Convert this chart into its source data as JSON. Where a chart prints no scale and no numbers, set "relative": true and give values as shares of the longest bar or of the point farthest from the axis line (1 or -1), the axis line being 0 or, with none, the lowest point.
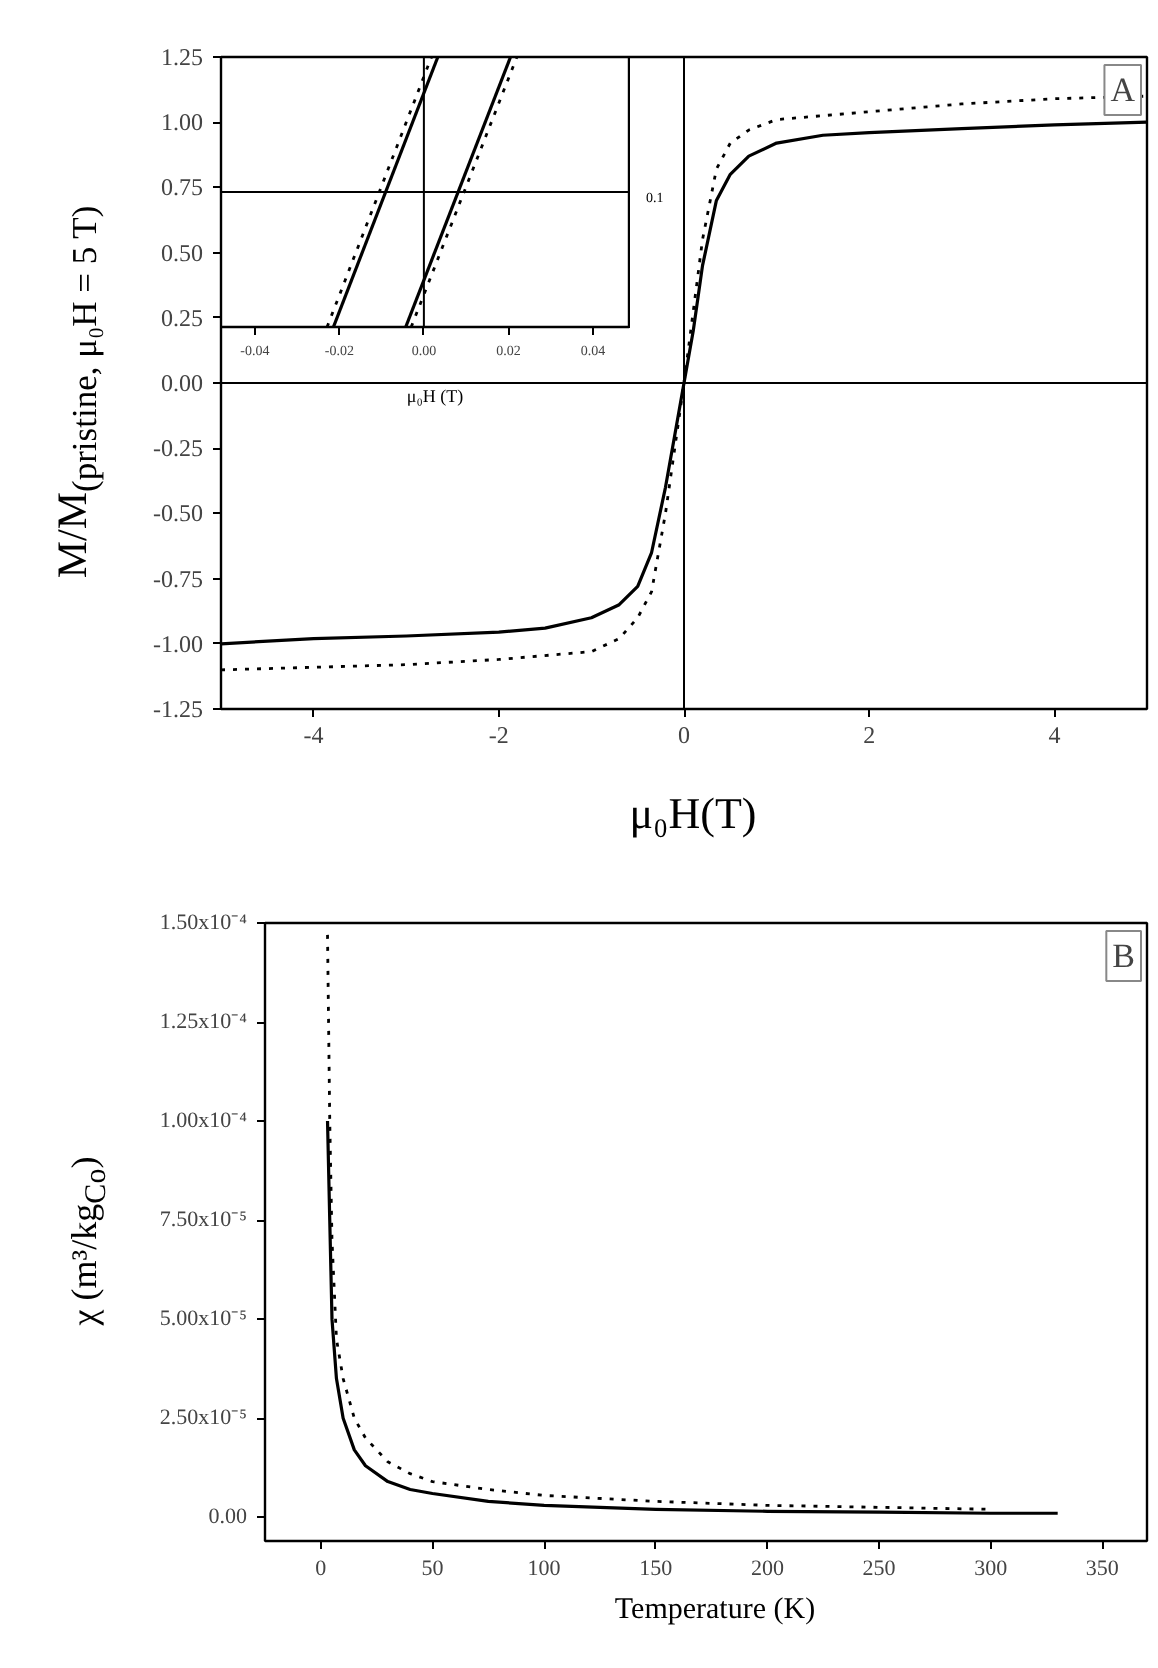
{
  "chart_data": [
    {
      "type": "line",
      "xlabel": "μ₀H(T)",
      "ylabel": "M/M$_{(pristine, μ₀H = 5 T)}$",
      "xlim": [
        -5,
        5
      ],
      "ylim": [
        -1.25,
        1.25
      ],
      "xticks": [
        -4,
        -2,
        0,
        2,
        4
      ],
      "yticks": [
        {
          "value": -1.25,
          "label": "-1.25"
        },
        {
          "value": -1,
          "label": "-1.00"
        },
        {
          "value": -0.75,
          "label": "-0.75"
        },
        {
          "value": -0.5,
          "label": "-0.50"
        },
        {
          "value": -0.25,
          "label": "-0.25"
        },
        {
          "value": 0,
          "label": "0.00"
        },
        {
          "value": 0.25,
          "label": "0.25"
        },
        {
          "value": 0.5,
          "label": "0.50"
        },
        {
          "value": 0.75,
          "label": "0.75"
        },
        {
          "value": 1,
          "label": "1.00"
        },
        {
          "value": 1.25,
          "label": "1.25"
        }
      ],
      "series": [
        {
          "color": "#000000",
          "line_style": "solid",
          "x": [
            -5,
            -4,
            -3,
            -2,
            -1.5,
            -1,
            -0.7,
            -0.5,
            -0.35,
            -0.2,
            -0.1,
            0,
            0.1,
            0.2,
            0.35,
            0.5,
            0.7,
            1,
            1.5,
            2,
            3,
            4,
            5
          ],
          "values": [
            -1.0,
            -0.98,
            -0.97,
            -0.955,
            -0.94,
            -0.9,
            -0.85,
            -0.78,
            -0.65,
            -0.4,
            -0.2,
            0.0,
            0.2,
            0.45,
            0.7,
            0.8,
            0.87,
            0.92,
            0.95,
            0.96,
            0.975,
            0.99,
            1.0
          ]
        },
        {
          "color": "#000000",
          "line_style": "dotted",
          "x": [
            -5,
            -4,
            -3,
            -2,
            -1,
            -0.7,
            -0.5,
            -0.35,
            -0.2,
            0,
            0.2,
            0.35,
            0.5,
            0.7,
            1,
            2,
            3,
            4,
            5
          ],
          "values": [
            -1.1,
            -1.09,
            -1.08,
            -1.06,
            -1.03,
            -0.98,
            -0.9,
            -0.8,
            -0.5,
            0.0,
            0.55,
            0.82,
            0.92,
            0.97,
            1.01,
            1.04,
            1.07,
            1.09,
            1.1
          ]
        }
      ],
      "ref_lines": [
        {
          "axis": "x",
          "value": 0
        },
        {
          "axis": "y",
          "value": 0
        }
      ],
      "annotations": [
        "A"
      ],
      "grid": false
    },
    {
      "type": "line",
      "xlabel": "μ₀H (T)",
      "xlim": [
        -0.048,
        0.049
      ],
      "xticks": [
        {
          "value": -0.04,
          "label": "-0.04"
        },
        {
          "value": -0.02,
          "label": "-0.02"
        },
        {
          "value": 0,
          "label": "0.00"
        },
        {
          "value": 0.02,
          "label": "0.02"
        },
        {
          "value": 0.04,
          "label": "0.04"
        }
      ],
      "relative": true,
      "series": [
        {
          "color": "#000000",
          "line_style": "solid",
          "x": [
            -0.0214,
            0.0033
          ],
          "values": [
            0,
            1
          ]
        },
        {
          "color": "#000000",
          "line_style": "solid",
          "x": [
            -0.0043,
            0.0205
          ],
          "values": [
            0,
            1
          ]
        },
        {
          "color": "#000000",
          "line_style": "dotted",
          "x": [
            -0.0229,
            0.0018
          ],
          "values": [
            0,
            1
          ]
        },
        {
          "color": "#000000",
          "line_style": "dotted",
          "x": [
            -0.003,
            0.022
          ],
          "values": [
            0,
            1
          ]
        }
      ],
      "ref_lines": [
        {
          "axis": "x",
          "value": 0
        },
        {
          "axis": "y",
          "value": 0.5
        }
      ],
      "annotations": [
        {
          "text": "0.1",
          "x": 0.049,
          "y": 0.5
        }
      ],
      "grid": false
    },
    {
      "type": "line",
      "xlabel": "Temperature (K)",
      "ylabel": "χ (m³/kg$_{Co}$)",
      "xlim": [
        -25,
        370
      ],
      "ylim": [
        -6e-06,
        0.00015
      ],
      "xticks": [
        0,
        50,
        100,
        150,
        200,
        250,
        300,
        350
      ],
      "yticks": [
        {
          "value": 0,
          "label": "0.00"
        },
        {
          "value": 2.5e-05,
          "label": "2.50x10⁻⁵"
        },
        {
          "value": 5e-05,
          "label": "5.00x10⁻⁵"
        },
        {
          "value": 7.5e-05,
          "label": "7.50x10⁻⁵"
        },
        {
          "value": 0.0001,
          "label": "1.00x10⁻⁴"
        },
        {
          "value": 0.000125,
          "label": "1.25x10⁻⁴"
        },
        {
          "value": 0.00015,
          "label": "1.50x10⁻⁴"
        }
      ],
      "series": [
        {
          "color": "#000000",
          "line_style": "solid",
          "x": [
            3,
            4,
            5,
            7,
            10,
            15,
            20,
            30,
            40,
            50,
            75,
            100,
            150,
            200,
            250,
            300,
            330
          ],
          "values": [
            0.0001,
            7.5e-05,
            5e-05,
            3.5e-05,
            2.5e-05,
            1.7e-05,
            1.3e-05,
            9e-06,
            7e-06,
            6e-06,
            4e-06,
            3e-06,
            2e-06,
            1.5e-06,
            1.3e-06,
            1e-06,
            1e-06
          ]
        },
        {
          "color": "#000000",
          "line_style": "dotted",
          "x": [
            3,
            4,
            5,
            7,
            10,
            15,
            20,
            30,
            40,
            50,
            75,
            100,
            150,
            200,
            250,
            300
          ],
          "values": [
            0.000147,
            0.0001,
            7e-05,
            4.5e-05,
            3.5e-05,
            2.5e-05,
            2e-05,
            1.4e-05,
            1.1e-05,
            9e-06,
            7e-06,
            5.5e-06,
            4e-06,
            3e-06,
            2.5e-06,
            2e-06
          ]
        }
      ],
      "annotations": [
        "B"
      ],
      "grid": false
    }
  ]
}
